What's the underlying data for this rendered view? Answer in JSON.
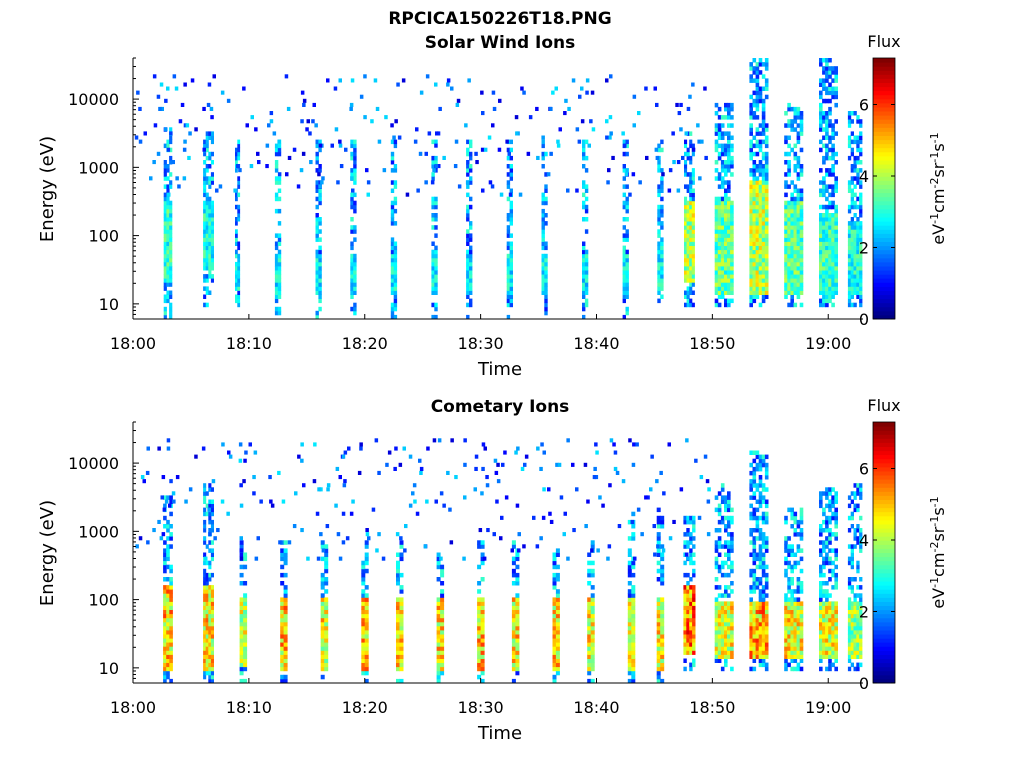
{
  "figure": {
    "title": "RPCICA150226T18.PNG"
  },
  "colorbar": {
    "title": "Flux",
    "unit_label": "eV-1cm-2sr-1s-1",
    "range": [
      0,
      7.3
    ],
    "ticks": [
      "0",
      "2",
      "4",
      "6"
    ],
    "colormap": "jet"
  },
  "chart_data": [
    {
      "type": "heatmap",
      "title": "Solar Wind Ions",
      "xlabel": "Time",
      "ylabel": "Energy (eV)",
      "x_ticks": [
        "18:00",
        "18:10",
        "18:20",
        "18:30",
        "18:40",
        "18:50",
        "19:00"
      ],
      "y_ticks": [
        "10",
        "100",
        "1000",
        "10000"
      ],
      "y_scale": "log",
      "xlim": [
        "18:00",
        "19:03"
      ],
      "ylim": [
        6,
        40000
      ],
      "segments": [
        {
          "t": 3,
          "w": 0.7,
          "lo": 6,
          "hi": 3500,
          "core_lo": 20,
          "core_hi": 300,
          "peak": 3.8
        },
        {
          "t": 6.5,
          "w": 0.9,
          "lo": 9,
          "hi": 3000,
          "core_lo": 30,
          "core_hi": 300,
          "peak": 3.6
        },
        {
          "t": 9,
          "w": 0.4,
          "lo": 8,
          "hi": 2500,
          "core_lo": 15,
          "core_hi": 40,
          "peak": 3.4
        },
        {
          "t": 12.5,
          "w": 0.5,
          "lo": 6,
          "hi": 2500,
          "core_lo": 12,
          "core_hi": 50,
          "peak": 3.3
        },
        {
          "t": 16,
          "w": 0.5,
          "lo": 6,
          "hi": 2500,
          "core_lo": 12,
          "core_hi": 50,
          "peak": 3.3
        },
        {
          "t": 19,
          "w": 0.5,
          "lo": 6,
          "hi": 2500,
          "core_lo": 12,
          "core_hi": 50,
          "peak": 3.3
        },
        {
          "t": 22.5,
          "w": 0.5,
          "lo": 6,
          "hi": 2500,
          "core_lo": 12,
          "core_hi": 50,
          "peak": 3.3
        },
        {
          "t": 26,
          "w": 0.5,
          "lo": 6,
          "hi": 2500,
          "core_lo": 12,
          "core_hi": 50,
          "peak": 3.3
        },
        {
          "t": 29,
          "w": 0.5,
          "lo": 6,
          "hi": 2500,
          "core_lo": 12,
          "core_hi": 50,
          "peak": 3.3
        },
        {
          "t": 32.5,
          "w": 0.5,
          "lo": 6,
          "hi": 2500,
          "core_lo": 12,
          "core_hi": 50,
          "peak": 3.3
        },
        {
          "t": 35.5,
          "w": 0.5,
          "lo": 6,
          "hi": 2500,
          "core_lo": 12,
          "core_hi": 50,
          "peak": 3.3
        },
        {
          "t": 39,
          "w": 0.5,
          "lo": 6,
          "hi": 2500,
          "core_lo": 12,
          "core_hi": 50,
          "peak": 3.3
        },
        {
          "t": 42.5,
          "w": 0.5,
          "lo": 6,
          "hi": 2500,
          "core_lo": 12,
          "core_hi": 50,
          "peak": 3.3
        },
        {
          "t": 45.5,
          "w": 0.5,
          "lo": 8,
          "hi": 2500,
          "core_lo": 15,
          "core_hi": 60,
          "peak": 3.4
        },
        {
          "t": 48,
          "w": 0.9,
          "lo": 9,
          "hi": 3000,
          "core_lo": 20,
          "core_hi": 300,
          "peak": 5.0
        },
        {
          "t": 51,
          "w": 1.6,
          "lo": 8,
          "hi": 8000,
          "core_lo": 12,
          "core_hi": 300,
          "peak": 4.3
        },
        {
          "t": 54,
          "w": 1.6,
          "lo": 8,
          "hi": 40000,
          "core_lo": 12,
          "core_hi": 600,
          "peak": 5.0
        },
        {
          "t": 57,
          "w": 1.6,
          "lo": 8,
          "hi": 8000,
          "core_lo": 12,
          "core_hi": 300,
          "peak": 4.2
        },
        {
          "t": 60,
          "w": 1.6,
          "lo": 8,
          "hi": 40000,
          "core_lo": 12,
          "core_hi": 200,
          "peak": 3.9
        },
        {
          "t": 62.3,
          "w": 1.2,
          "lo": 9,
          "hi": 6000,
          "core_lo": 12,
          "core_hi": 150,
          "peak": 3.6
        }
      ]
    },
    {
      "type": "heatmap",
      "title": "Cometary Ions",
      "xlabel": "Time",
      "ylabel": "Energy (eV)",
      "x_ticks": [
        "18:00",
        "18:10",
        "18:20",
        "18:30",
        "18:40",
        "18:50",
        "19:00"
      ],
      "y_ticks": [
        "10",
        "100",
        "1000",
        "10000"
      ],
      "y_scale": "log",
      "xlim": [
        "18:00",
        "19:03"
      ],
      "ylim": [
        6,
        40000
      ],
      "segments": [
        {
          "t": 3,
          "w": 0.8,
          "lo": 6,
          "hi": 3000,
          "core_lo": 8,
          "core_hi": 150,
          "peak": 6.0
        },
        {
          "t": 6.5,
          "w": 0.9,
          "lo": 6,
          "hi": 5000,
          "core_lo": 8,
          "core_hi": 150,
          "peak": 5.8
        },
        {
          "t": 9.5,
          "w": 0.6,
          "lo": 6,
          "hi": 700,
          "core_lo": 10,
          "core_hi": 100,
          "peak": 5.2
        },
        {
          "t": 13,
          "w": 0.6,
          "lo": 6,
          "hi": 700,
          "core_lo": 8,
          "core_hi": 100,
          "peak": 6.0
        },
        {
          "t": 16.5,
          "w": 0.6,
          "lo": 6,
          "hi": 700,
          "core_lo": 8,
          "core_hi": 100,
          "peak": 5.6
        },
        {
          "t": 20,
          "w": 0.6,
          "lo": 6,
          "hi": 700,
          "core_lo": 8,
          "core_hi": 100,
          "peak": 6.0
        },
        {
          "t": 23,
          "w": 0.6,
          "lo": 6,
          "hi": 700,
          "core_lo": 8,
          "core_hi": 100,
          "peak": 5.8
        },
        {
          "t": 26.5,
          "w": 0.6,
          "lo": 6,
          "hi": 700,
          "core_lo": 8,
          "core_hi": 100,
          "peak": 5.8
        },
        {
          "t": 30,
          "w": 0.6,
          "lo": 6,
          "hi": 700,
          "core_lo": 8,
          "core_hi": 100,
          "peak": 6.0
        },
        {
          "t": 33,
          "w": 0.6,
          "lo": 6,
          "hi": 700,
          "core_lo": 8,
          "core_hi": 100,
          "peak": 5.8
        },
        {
          "t": 36.5,
          "w": 0.6,
          "lo": 6,
          "hi": 700,
          "core_lo": 8,
          "core_hi": 100,
          "peak": 5.8
        },
        {
          "t": 39.5,
          "w": 0.6,
          "lo": 6,
          "hi": 700,
          "core_lo": 8,
          "core_hi": 100,
          "peak": 5.6
        },
        {
          "t": 43,
          "w": 0.6,
          "lo": 6,
          "hi": 2000,
          "core_lo": 8,
          "core_hi": 100,
          "peak": 5.2
        },
        {
          "t": 45.5,
          "w": 0.6,
          "lo": 6,
          "hi": 2000,
          "core_lo": 8,
          "core_hi": 100,
          "peak": 5.6
        },
        {
          "t": 48,
          "w": 1.0,
          "lo": 9,
          "hi": 1500,
          "core_lo": 15,
          "core_hi": 150,
          "peak": 6.8
        },
        {
          "t": 51,
          "w": 1.6,
          "lo": 8,
          "hi": 5000,
          "core_lo": 12,
          "core_hi": 90,
          "peak": 5.5
        },
        {
          "t": 54,
          "w": 1.6,
          "lo": 8,
          "hi": 15000,
          "core_lo": 12,
          "core_hi": 90,
          "peak": 6.2
        },
        {
          "t": 57,
          "w": 1.6,
          "lo": 8,
          "hi": 2000,
          "core_lo": 12,
          "core_hi": 90,
          "peak": 5.6
        },
        {
          "t": 60,
          "w": 1.6,
          "lo": 8,
          "hi": 4000,
          "core_lo": 12,
          "core_hi": 90,
          "peak": 5.4
        },
        {
          "t": 62.3,
          "w": 1.2,
          "lo": 8,
          "hi": 5000,
          "core_lo": 12,
          "core_hi": 90,
          "peak": 4.8
        }
      ]
    }
  ]
}
